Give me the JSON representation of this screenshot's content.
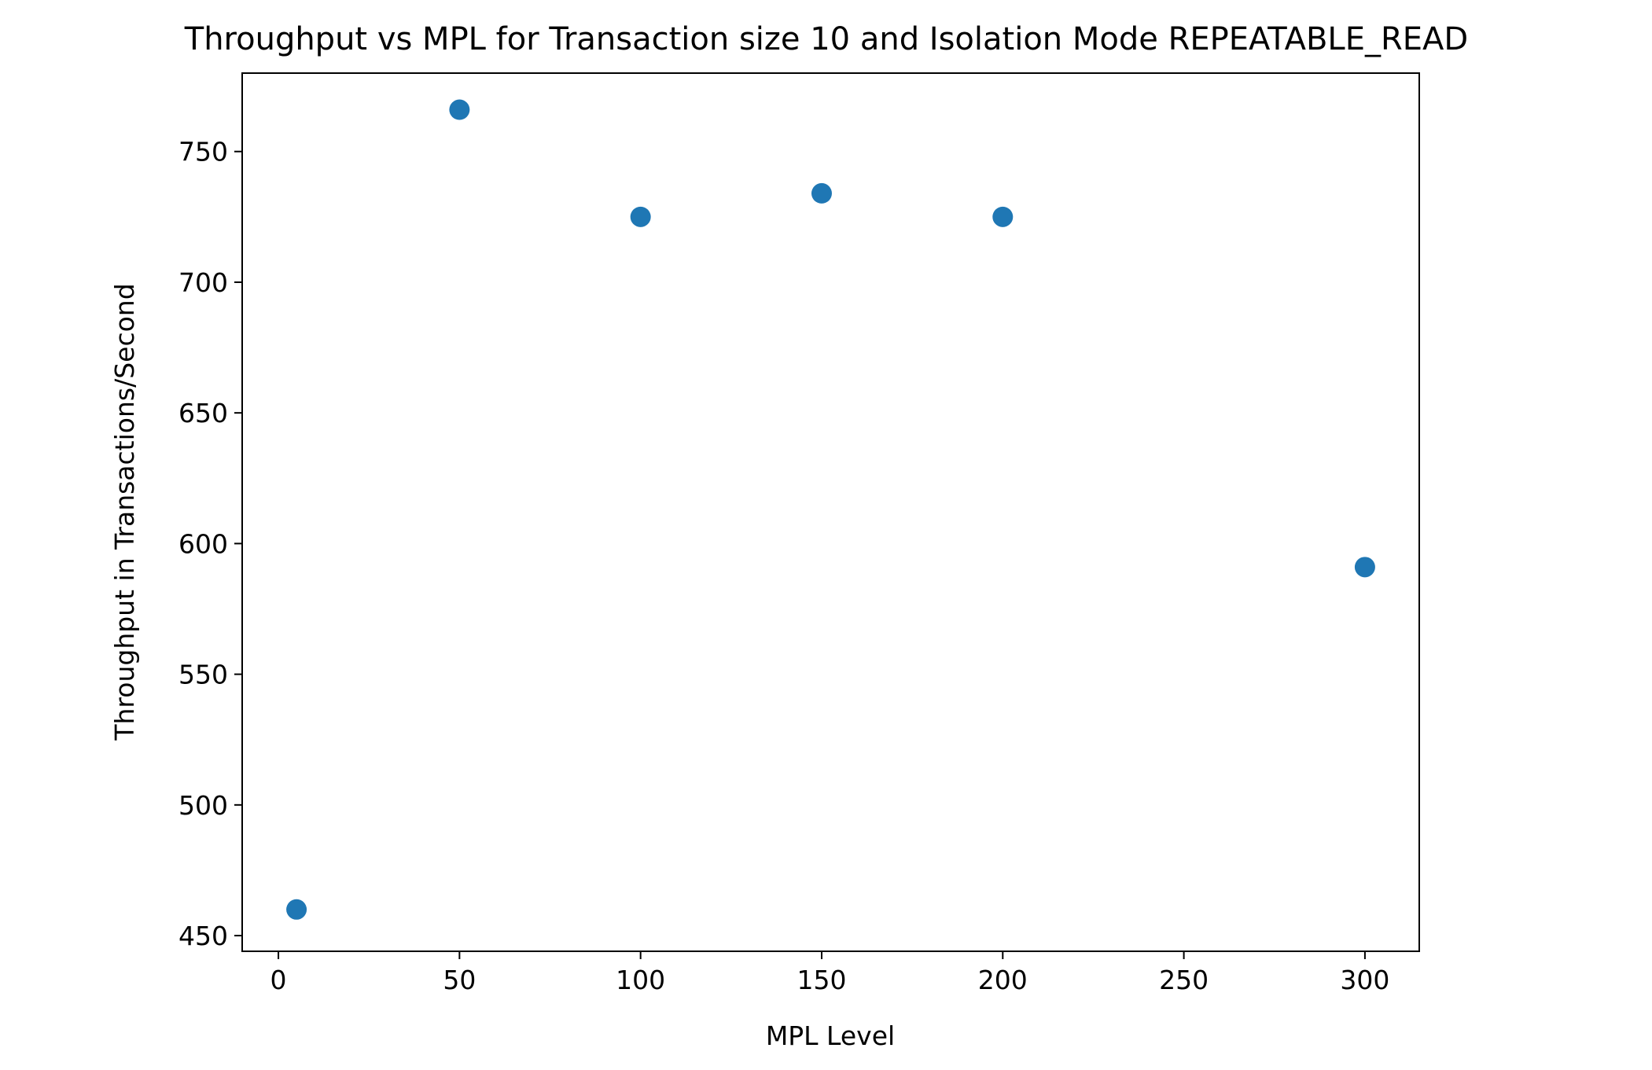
{
  "chart_data": {
    "type": "scatter",
    "title": "Throughput vs MPL for Transaction size 10 and Isolation Mode REPEATABLE_READ",
    "xlabel": "MPL Level",
    "ylabel": "Throughput in Transactions/Second",
    "xlim": [
      -10,
      315
    ],
    "ylim": [
      444,
      780
    ],
    "x_ticks": [
      0,
      50,
      100,
      150,
      200,
      250,
      300
    ],
    "y_ticks": [
      450,
      500,
      550,
      600,
      650,
      700,
      750
    ],
    "x_tick_labels": [
      "0",
      "50",
      "100",
      "150",
      "200",
      "250",
      "300"
    ],
    "y_tick_labels": [
      "450",
      "500",
      "550",
      "600",
      "650",
      "700",
      "750"
    ],
    "grid": false,
    "legend": "none",
    "marker_color": "#1f77b4",
    "series": [
      {
        "x": [
          5,
          50,
          100,
          150,
          200,
          300
        ],
        "y": [
          460,
          766,
          725,
          734,
          725,
          591
        ]
      }
    ]
  }
}
